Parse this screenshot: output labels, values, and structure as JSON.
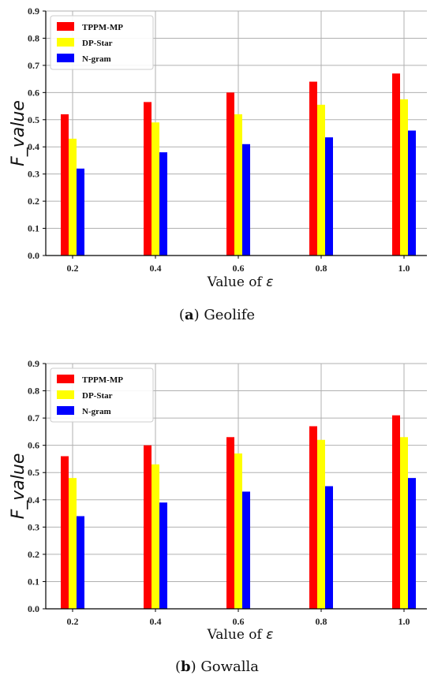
{
  "chart_data": [
    {
      "type": "bar",
      "caption_letter": "a",
      "caption_text": "Geolife",
      "categories": [
        "0.2",
        "0.4",
        "0.6",
        "0.8",
        "1.0"
      ],
      "series": [
        {
          "name": "TPPM-MP",
          "color": "#ff0000",
          "values": [
            0.52,
            0.565,
            0.6,
            0.64,
            0.67
          ]
        },
        {
          "name": "DP-Star",
          "color": "#ffff00",
          "values": [
            0.43,
            0.49,
            0.52,
            0.555,
            0.575
          ]
        },
        {
          "name": "N-gram",
          "color": "#0000ff",
          "values": [
            0.32,
            0.38,
            0.41,
            0.435,
            0.46
          ]
        }
      ],
      "ylabel": "F_value",
      "xlabel": "Value of ",
      "xlabel_symbol": "ε",
      "ylim": [
        0,
        0.9
      ],
      "yticks": [
        "0.0",
        "0.1",
        "0.2",
        "0.3",
        "0.4",
        "0.5",
        "0.6",
        "0.7",
        "0.8",
        "0.9"
      ],
      "grid": true,
      "legend": "top-left"
    },
    {
      "type": "bar",
      "caption_letter": "b",
      "caption_text": "Gowalla",
      "categories": [
        "0.2",
        "0.4",
        "0.6",
        "0.8",
        "1.0"
      ],
      "series": [
        {
          "name": "TPPM-MP",
          "color": "#ff0000",
          "values": [
            0.56,
            0.6,
            0.63,
            0.67,
            0.71
          ]
        },
        {
          "name": "DP-Star",
          "color": "#ffff00",
          "values": [
            0.48,
            0.53,
            0.57,
            0.62,
            0.63
          ]
        },
        {
          "name": "N-gram",
          "color": "#0000ff",
          "values": [
            0.34,
            0.39,
            0.43,
            0.45,
            0.48
          ]
        }
      ],
      "ylabel": "F_value",
      "xlabel": "Value of ",
      "xlabel_symbol": "ε",
      "ylim": [
        0,
        0.9
      ],
      "yticks": [
        "0.0",
        "0.1",
        "0.2",
        "0.3",
        "0.4",
        "0.5",
        "0.6",
        "0.7",
        "0.8",
        "0.9"
      ],
      "grid": true,
      "legend": "top-left"
    }
  ]
}
